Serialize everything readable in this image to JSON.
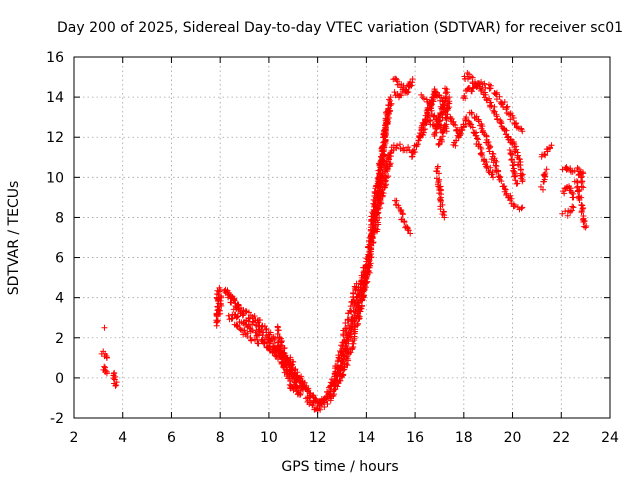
{
  "chart_data": {
    "type": "scatter",
    "title": "Day 200 of 2025, Sidereal Day-to-day VTEC variation (SDTVAR) for receiver sc01",
    "xlabel": "GPS time / hours",
    "ylabel": "SDTVAR / TECUs",
    "xlim": [
      2,
      24
    ],
    "ylim": [
      -2,
      16
    ],
    "xticks": [
      2,
      4,
      6,
      8,
      10,
      12,
      14,
      16,
      18,
      20,
      22,
      24
    ],
    "yticks": [
      -2,
      0,
      2,
      4,
      6,
      8,
      10,
      12,
      14,
      16
    ],
    "grid": true,
    "marker": "+",
    "color": "#ff0000",
    "series": [
      {
        "name": "tracks",
        "tracks": [
          [
            [
              3.25,
              2.5
            ]
          ],
          [
            [
              3.2,
              1.3
            ],
            [
              3.25,
              1.2
            ],
            [
              3.3,
              1.1
            ],
            [
              3.35,
              1.0
            ]
          ],
          [
            [
              3.2,
              0.5
            ],
            [
              3.25,
              0.4
            ],
            [
              3.3,
              0.3
            ],
            [
              3.35,
              0.3
            ]
          ],
          [
            [
              3.6,
              0.3
            ],
            [
              3.65,
              0.0
            ],
            [
              3.7,
              -0.2
            ],
            [
              3.7,
              -0.4
            ]
          ],
          [
            [
              7.85,
              2.6
            ],
            [
              7.9,
              4.0
            ],
            [
              7.95,
              4.4
            ],
            [
              8.0,
              4.1
            ],
            [
              8.0,
              3.2
            ]
          ],
          [
            [
              8.2,
              4.5
            ],
            [
              8.5,
              3.8
            ],
            [
              9.0,
              3.0
            ],
            [
              9.5,
              2.6
            ],
            [
              10.0,
              1.9
            ],
            [
              10.5,
              1.2
            ],
            [
              11.0,
              0.3
            ],
            [
              11.5,
              -0.5
            ],
            [
              11.9,
              -1.1
            ],
            [
              12.2,
              -1.4
            ],
            [
              12.5,
              -1.1
            ],
            [
              12.8,
              -0.4
            ],
            [
              13.1,
              0.5
            ],
            [
              13.4,
              1.5
            ],
            [
              13.6,
              2.5
            ],
            [
              13.8,
              3.8
            ],
            [
              14.0,
              5.0
            ]
          ],
          [
            [
              8.3,
              4.3
            ],
            [
              8.8,
              3.5
            ],
            [
              9.3,
              3.1
            ],
            [
              9.8,
              2.5
            ],
            [
              10.3,
              1.8
            ],
            [
              10.8,
              0.9
            ],
            [
              11.2,
              0.1
            ],
            [
              11.6,
              -0.7
            ],
            [
              12.0,
              -1.3
            ],
            [
              12.4,
              -1.0
            ],
            [
              12.7,
              -0.2
            ],
            [
              13.0,
              0.9
            ],
            [
              13.3,
              2.0
            ],
            [
              13.6,
              3.1
            ],
            [
              13.9,
              4.6
            ],
            [
              14.1,
              6.0
            ]
          ],
          [
            [
              8.4,
              3.0
            ],
            [
              8.7,
              2.6
            ],
            [
              9.0,
              2.2
            ],
            [
              9.5,
              1.8
            ],
            [
              10.0,
              1.5
            ],
            [
              10.5,
              1.2
            ],
            [
              11.0,
              0.8
            ]
          ],
          [
            [
              8.5,
              3.3
            ],
            [
              8.8,
              2.9
            ],
            [
              9.2,
              2.5
            ],
            [
              9.7,
              2.0
            ],
            [
              10.2,
              1.3
            ],
            [
              10.7,
              0.5
            ],
            [
              11.0,
              -0.1
            ],
            [
              11.4,
              -0.6
            ]
          ],
          [
            [
              10.3,
              2.5
            ],
            [
              10.5,
              1.8
            ],
            [
              10.7,
              1.0
            ],
            [
              10.9,
              0.3
            ],
            [
              11.1,
              -0.4
            ],
            [
              11.3,
              -0.8
            ]
          ],
          [
            [
              10.4,
              1.5
            ],
            [
              10.6,
              0.6
            ],
            [
              10.8,
              -0.1
            ],
            [
              11.0,
              -0.6
            ],
            [
              11.2,
              -0.8
            ]
          ],
          [
            [
              11.5,
              -1.0
            ],
            [
              11.8,
              -1.4
            ],
            [
              12.0,
              -1.6
            ],
            [
              12.2,
              -1.3
            ],
            [
              12.4,
              -0.8
            ],
            [
              12.6,
              -0.2
            ],
            [
              12.8,
              0.6
            ],
            [
              13.0,
              1.6
            ],
            [
              13.2,
              2.8
            ],
            [
              13.4,
              3.5
            ],
            [
              13.6,
              4.7
            ]
          ],
          [
            [
              12.7,
              -0.5
            ],
            [
              12.9,
              0.3
            ],
            [
              13.1,
              1.2
            ],
            [
              13.3,
              2.2
            ],
            [
              13.5,
              3.3
            ],
            [
              13.7,
              4.3
            ],
            [
              13.9,
              5.5
            ]
          ],
          [
            [
              13.8,
              4.0
            ],
            [
              14.0,
              5.5
            ],
            [
              14.2,
              7.0
            ],
            [
              14.3,
              8.0
            ],
            [
              14.5,
              9.5
            ],
            [
              14.6,
              10.5
            ],
            [
              14.7,
              11.5
            ],
            [
              14.8,
              12.3
            ],
            [
              14.9,
              13.2
            ],
            [
              15.0,
              14.0
            ]
          ],
          [
            [
              14.0,
              4.8
            ],
            [
              14.2,
              6.2
            ],
            [
              14.3,
              7.5
            ],
            [
              14.5,
              9.0
            ],
            [
              14.6,
              10.2
            ],
            [
              14.7,
              11.3
            ],
            [
              14.8,
              12.5
            ],
            [
              14.9,
              13.3
            ]
          ],
          [
            [
              14.1,
              6.5
            ],
            [
              14.3,
              8.5
            ],
            [
              14.5,
              10.0
            ],
            [
              14.6,
              10.8
            ],
            [
              14.7,
              11.6
            ],
            [
              14.8,
              12.5
            ],
            [
              14.9,
              13.6
            ]
          ],
          [
            [
              14.4,
              7.2
            ],
            [
              14.5,
              8.3
            ],
            [
              14.7,
              9.4
            ],
            [
              14.9,
              10.5
            ],
            [
              15.0,
              11.2
            ]
          ],
          [
            [
              14.5,
              8.8
            ],
            [
              14.7,
              10.2
            ],
            [
              15.0,
              11.4
            ],
            [
              15.3,
              11.6
            ],
            [
              15.6,
              11.4
            ],
            [
              15.9,
              11.3
            ]
          ],
          [
            [
              15.2,
              8.8
            ],
            [
              15.4,
              8.3
            ],
            [
              15.6,
              7.6
            ],
            [
              15.8,
              7.2
            ]
          ],
          [
            [
              15.1,
              15.0
            ],
            [
              15.3,
              14.7
            ],
            [
              15.5,
              14.5
            ],
            [
              15.7,
              14.3
            ],
            [
              15.9,
              14.9
            ]
          ],
          [
            [
              15.2,
              14.2
            ],
            [
              15.4,
              14.0
            ],
            [
              15.6,
              14.3
            ],
            [
              15.8,
              14.6
            ]
          ],
          [
            [
              15.9,
              11.0
            ],
            [
              16.1,
              11.8
            ],
            [
              16.3,
              12.5
            ],
            [
              16.5,
              13.2
            ],
            [
              16.7,
              13.8
            ],
            [
              16.8,
              14.4
            ]
          ],
          [
            [
              16.2,
              12.0
            ],
            [
              16.4,
              12.6
            ],
            [
              16.6,
              13.5
            ],
            [
              16.8,
              14.2
            ],
            [
              17.0,
              14.0
            ],
            [
              17.2,
              13.6
            ]
          ],
          [
            [
              16.3,
              14.0
            ],
            [
              16.5,
              13.8
            ],
            [
              16.7,
              13.2
            ],
            [
              16.9,
              12.8
            ],
            [
              17.1,
              12.5
            ],
            [
              17.3,
              12.3
            ]
          ],
          [
            [
              16.5,
              12.8
            ],
            [
              16.8,
              12.5
            ],
            [
              17.0,
              12.8
            ],
            [
              17.2,
              13.3
            ],
            [
              17.4,
              13.5
            ]
          ],
          [
            [
              16.8,
              12.0
            ],
            [
              16.9,
              12.5
            ],
            [
              17.0,
              13.0
            ],
            [
              17.1,
              13.4
            ],
            [
              17.2,
              13.8
            ],
            [
              17.3,
              14.4
            ]
          ],
          [
            [
              16.9,
              10.5
            ],
            [
              17.0,
              9.5
            ],
            [
              17.1,
              8.5
            ],
            [
              17.2,
              8.0
            ]
          ],
          [
            [
              17.0,
              11.5
            ],
            [
              17.2,
              12.5
            ],
            [
              17.3,
              13.2
            ],
            [
              17.4,
              14.0
            ]
          ],
          [
            [
              17.4,
              13.0
            ],
            [
              17.6,
              12.6
            ],
            [
              17.8,
              12.3
            ],
            [
              18.0,
              12.6
            ],
            [
              18.1,
              13.0
            ]
          ],
          [
            [
              17.6,
              11.5
            ],
            [
              17.8,
              12.0
            ],
            [
              18.0,
              12.5
            ]
          ],
          [
            [
              18.0,
              14.8
            ],
            [
              18.2,
              15.1
            ],
            [
              18.4,
              14.8
            ],
            [
              18.6,
              14.5
            ],
            [
              18.8,
              14.2
            ],
            [
              19.0,
              13.8
            ],
            [
              19.2,
              13.4
            ],
            [
              19.4,
              13.0
            ],
            [
              19.6,
              12.5
            ],
            [
              19.8,
              12.1
            ],
            [
              20.0,
              11.7
            ]
          ],
          [
            [
              18.0,
              14.0
            ],
            [
              18.2,
              14.5
            ],
            [
              18.4,
              14.3
            ],
            [
              18.6,
              14.7
            ],
            [
              18.8,
              14.6
            ],
            [
              19.0,
              14.5
            ],
            [
              19.2,
              14.3
            ],
            [
              19.4,
              14.0
            ],
            [
              19.6,
              13.7
            ],
            [
              19.8,
              13.3
            ],
            [
              20.0,
              12.9
            ],
            [
              20.2,
              12.6
            ],
            [
              20.4,
              12.3
            ]
          ],
          [
            [
              18.3,
              13.2
            ],
            [
              18.6,
              12.8
            ],
            [
              18.9,
              12.0
            ],
            [
              19.2,
              11.0
            ],
            [
              19.4,
              10.2
            ],
            [
              19.6,
              9.6
            ],
            [
              19.8,
              9.1
            ],
            [
              20.0,
              8.7
            ],
            [
              20.2,
              8.5
            ],
            [
              20.4,
              8.5
            ]
          ],
          [
            [
              18.2,
              12.8
            ],
            [
              18.4,
              12.3
            ],
            [
              18.6,
              11.7
            ],
            [
              18.8,
              11.0
            ],
            [
              19.0,
              10.5
            ],
            [
              19.2,
              10.0
            ]
          ],
          [
            [
              19.8,
              12.0
            ],
            [
              20.0,
              11.7
            ],
            [
              20.2,
              11.2
            ],
            [
              20.3,
              10.5
            ],
            [
              20.4,
              9.8
            ]
          ],
          [
            [
              19.9,
              11.3
            ],
            [
              20.0,
              10.8
            ],
            [
              20.1,
              10.2
            ],
            [
              20.2,
              9.7
            ]
          ],
          [
            [
              21.2,
              11.0
            ],
            [
              21.4,
              11.4
            ],
            [
              21.6,
              11.6
            ]
          ],
          [
            [
              21.2,
              9.5
            ],
            [
              21.3,
              10.0
            ],
            [
              21.4,
              10.4
            ]
          ],
          [
            [
              22.1,
              10.3
            ],
            [
              22.3,
              10.5
            ],
            [
              22.5,
              10.3
            ],
            [
              22.7,
              10.4
            ],
            [
              22.9,
              10.2
            ]
          ],
          [
            [
              22.1,
              9.2
            ],
            [
              22.3,
              9.6
            ],
            [
              22.5,
              9.0
            ]
          ],
          [
            [
              22.1,
              8.3
            ],
            [
              22.3,
              8.2
            ],
            [
              22.5,
              8.5
            ]
          ],
          [
            [
              22.6,
              9.8
            ],
            [
              22.7,
              9.2
            ],
            [
              22.8,
              8.7
            ],
            [
              22.9,
              8.2
            ],
            [
              23.0,
              7.5
            ]
          ],
          [
            [
              22.7,
              10.2
            ],
            [
              22.8,
              9.9
            ],
            [
              22.9,
              9.5
            ]
          ]
        ]
      }
    ]
  }
}
